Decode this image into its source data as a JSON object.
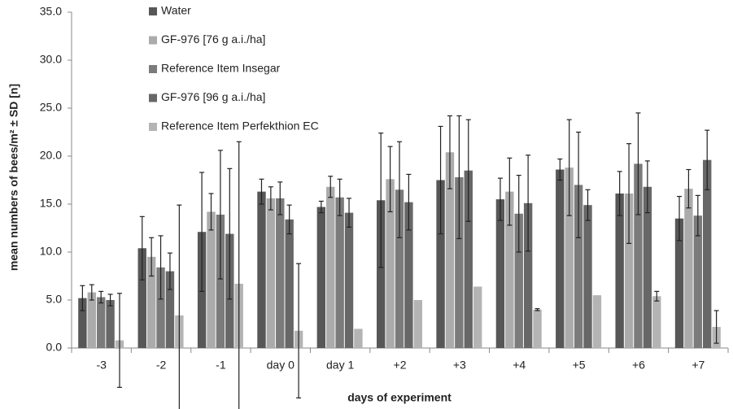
{
  "chart_data": {
    "type": "bar",
    "categories": [
      "-3",
      "-2",
      "-1",
      "day 0",
      "day 1",
      "+2",
      "+3",
      "+4",
      "+5",
      "+6",
      "+7"
    ],
    "series": [
      {
        "name": "Water",
        "color": "#575757",
        "values": [
          5.2,
          10.4,
          12.1,
          16.3,
          14.7,
          15.4,
          17.5,
          15.5,
          18.6,
          16.1,
          13.5
        ],
        "errors": [
          1.3,
          3.3,
          6.2,
          1.3,
          0.6,
          7.0,
          5.6,
          2.2,
          1.1,
          2.3,
          2.3
        ]
      },
      {
        "name": "GF-976 [76 g a.i./ha]",
        "color": "#ababab",
        "values": [
          5.8,
          9.5,
          14.2,
          15.6,
          16.8,
          17.6,
          20.4,
          16.3,
          18.8,
          16.1,
          16.6
        ],
        "errors": [
          0.8,
          2.0,
          1.9,
          1.2,
          1.1,
          3.4,
          3.8,
          3.5,
          5.0,
          5.2,
          2.0
        ]
      },
      {
        "name": "Reference Item Insegar",
        "color": "#7b7b7b",
        "values": [
          5.3,
          8.4,
          13.9,
          15.6,
          15.7,
          16.5,
          17.8,
          14.0,
          17.0,
          19.2,
          13.8
        ],
        "errors": [
          0.6,
          3.3,
          6.7,
          1.7,
          1.9,
          5.0,
          6.4,
          4.0,
          5.5,
          5.3,
          2.1
        ]
      },
      {
        "name": "GF-976 [96 g a.i./ha]",
        "color": "#676767",
        "values": [
          5.0,
          8.0,
          11.9,
          13.4,
          14.1,
          15.2,
          18.5,
          15.1,
          14.9,
          16.8,
          19.6
        ],
        "errors": [
          0.6,
          1.9,
          6.8,
          1.5,
          1.5,
          2.9,
          5.3,
          5.0,
          1.6,
          2.7,
          3.1
        ]
      },
      {
        "name": "Reference Item Perfekthion EC",
        "color": "#b4b4b4",
        "values": [
          0.8,
          3.4,
          6.7,
          1.8,
          2.0,
          5.0,
          6.4,
          4.0,
          5.5,
          5.4,
          2.2
        ],
        "errors": [
          4.9,
          11.5,
          14.8,
          7.0,
          0,
          0,
          0,
          0.1,
          0,
          0.5,
          1.7
        ]
      }
    ],
    "x_label": "days of experiment",
    "y_label": "mean numbers of bees/m² ± SD [n]",
    "ylim": [
      0,
      35
    ],
    "yticks": [
      {
        "value": 0,
        "label": "0.0"
      },
      {
        "value": 5,
        "label": "5.0"
      },
      {
        "value": 10,
        "label": "10.0"
      },
      {
        "value": 15,
        "label": "15.0"
      },
      {
        "value": 20,
        "label": "20.0"
      },
      {
        "value": 25,
        "label": "25.0"
      },
      {
        "value": 30,
        "label": "30.0"
      },
      {
        "value": 35,
        "label": "35.0"
      }
    ],
    "grid": false,
    "legend": "upper left"
  }
}
